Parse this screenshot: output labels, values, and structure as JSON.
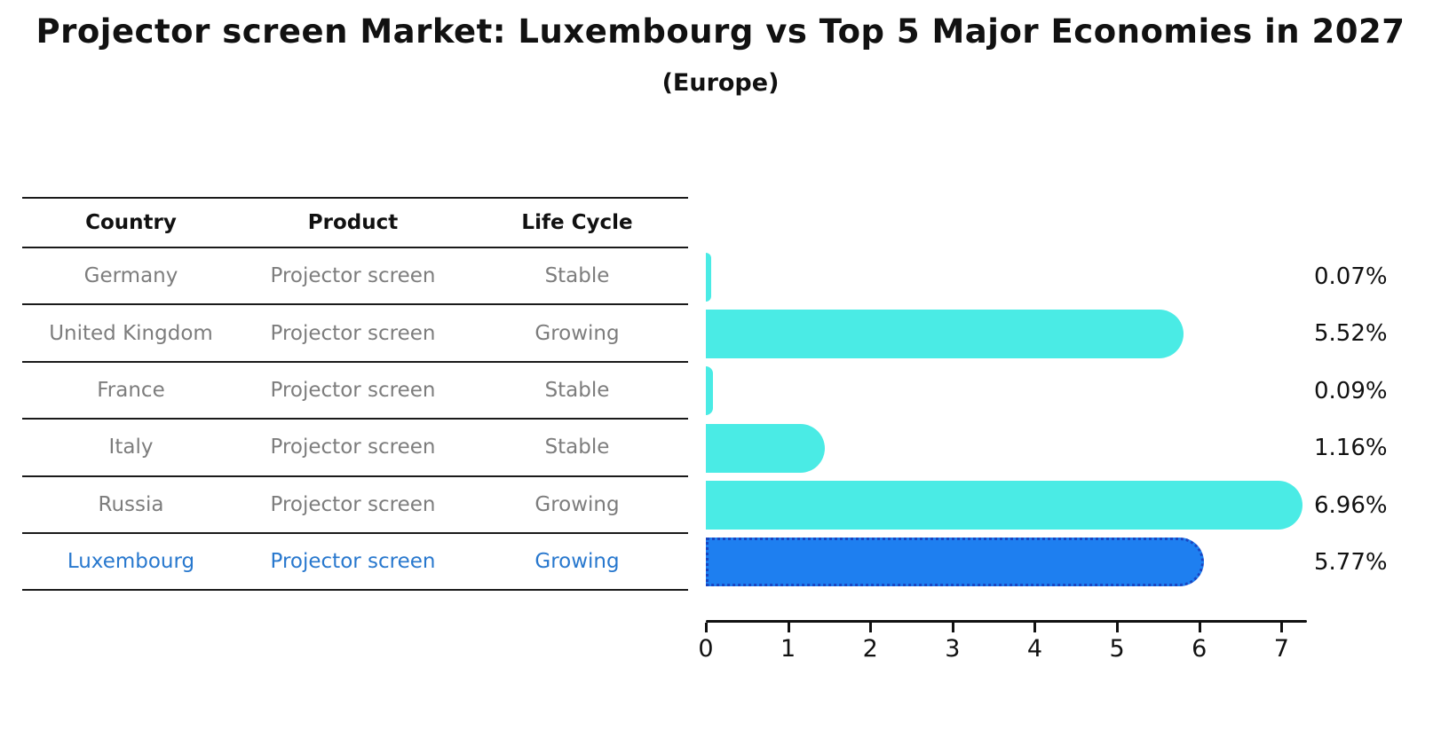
{
  "title": "Projector screen Market: Luxembourg vs Top 5 Major Economies in 2027",
  "subtitle": "(Europe)",
  "table": {
    "headers": [
      "Country",
      "Product",
      "Life Cycle"
    ],
    "rows": [
      {
        "country": "Germany",
        "product": "Projector screen",
        "life_cycle": "Stable",
        "highlight": false
      },
      {
        "country": "United Kingdom",
        "product": "Projector screen",
        "life_cycle": "Growing",
        "highlight": false
      },
      {
        "country": "France",
        "product": "Projector screen",
        "life_cycle": "Stable",
        "highlight": false
      },
      {
        "country": "Italy",
        "product": "Projector screen",
        "life_cycle": "Stable",
        "highlight": false
      },
      {
        "country": "Russia",
        "product": "Projector screen",
        "life_cycle": "Growing",
        "highlight": false
      },
      {
        "country": "Luxembourg",
        "product": "Projector screen",
        "life_cycle": "Growing",
        "highlight": true
      }
    ]
  },
  "chart_data": {
    "type": "bar",
    "orientation": "horizontal",
    "title": "Projector screen Market: Luxembourg vs Top 5 Major Economies in 2027",
    "subtitle": "(Europe)",
    "categories": [
      "Germany",
      "United Kingdom",
      "France",
      "Italy",
      "Russia",
      "Luxembourg"
    ],
    "values": [
      0.07,
      5.52,
      0.09,
      1.16,
      6.96,
      5.77
    ],
    "value_labels": [
      "0.07%",
      "5.52%",
      "0.09%",
      "1.16%",
      "6.96%",
      "5.77%"
    ],
    "x_ticks": [
      0,
      1,
      2,
      3,
      4,
      5,
      6,
      7
    ],
    "xlim": [
      0,
      7.31
    ],
    "grid": false,
    "legend": false,
    "highlight_index": 5,
    "colors": {
      "bar": "#4aebe5",
      "highlight_bar": "#1e7ff0",
      "highlight_border": "#1a45c0",
      "row_text": "#7d7d7d",
      "highlight_text": "#2878ce",
      "axis": "#111111"
    }
  }
}
